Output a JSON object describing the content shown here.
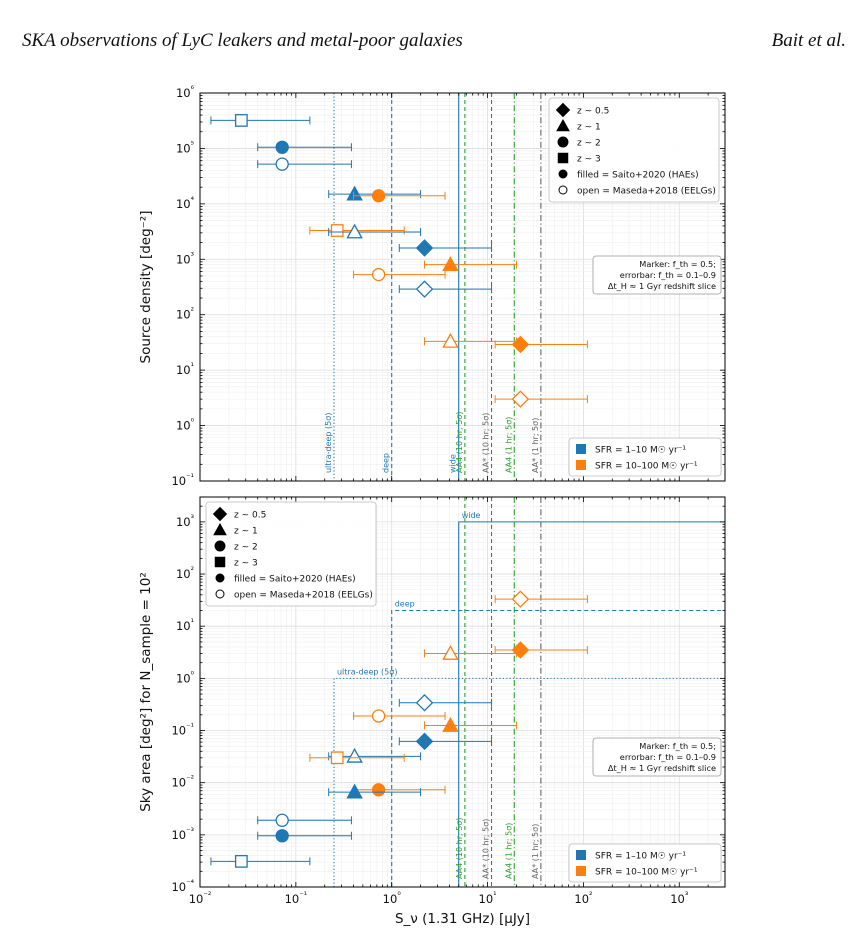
{
  "header": {
    "left": "SKA observations of LyC leakers and metal-poor galaxies",
    "right": "Bait et al."
  },
  "colors": {
    "sfr_low": "#1f77b4",
    "sfr_high": "#ff7f0e",
    "aa4": "#2ca02c",
    "aastar": "#666666"
  },
  "chart_data": [
    {
      "type": "scatter",
      "xscale": "log",
      "yscale": "log",
      "xlim": [
        0.01,
        3000
      ],
      "ylim": [
        0.1,
        1000000
      ],
      "xticks": [
        "10⁻²",
        "10⁻¹",
        "10⁰",
        "10¹",
        "10²",
        "10³"
      ],
      "yticks": [
        "10⁻¹",
        "10⁰",
        "10¹",
        "10²",
        "10³",
        "10⁴",
        "10⁵",
        "10⁶"
      ],
      "ylabel": "Source density [deg⁻²]",
      "grid": true,
      "vlines": [
        {
          "x": 0.25,
          "label": "ultra-deep (5σ)",
          "color": "#1f77b4",
          "style": "dotted"
        },
        {
          "x": 1.0,
          "label": "deep",
          "color": "#1f77b4",
          "style": "dashed"
        },
        {
          "x": 5.0,
          "label": "wide",
          "color": "#1f77b4",
          "style": "solid"
        },
        {
          "x": 5.8,
          "label": "AA4 (10 hr; 5σ)",
          "color": "#2ca02c",
          "style": "dashed"
        },
        {
          "x": 11,
          "label": "AA* (10 hr; 5σ)",
          "color": "#666666",
          "style": "dashed"
        },
        {
          "x": 19,
          "label": "AA4 (1 hr; 5σ)",
          "color": "#2ca02c",
          "style": "dashdot"
        },
        {
          "x": 36,
          "label": "AA* (1 hr; 5σ)",
          "color": "#666666",
          "style": "dashdot"
        }
      ],
      "points": [
        {
          "marker": "square",
          "filled": false,
          "sfr": "low",
          "x": 0.027,
          "xerr": [
            0.013,
            0.14
          ],
          "y": 320000
        },
        {
          "marker": "circle",
          "filled": true,
          "sfr": "low",
          "x": 0.072,
          "xerr": [
            0.04,
            0.38
          ],
          "y": 105000
        },
        {
          "marker": "circle",
          "filled": false,
          "sfr": "low",
          "x": 0.072,
          "xerr": [
            0.04,
            0.38
          ],
          "y": 52000
        },
        {
          "marker": "triangle",
          "filled": true,
          "sfr": "low",
          "x": 0.41,
          "xerr": [
            0.22,
            2.0
          ],
          "y": 15000
        },
        {
          "marker": "circle",
          "filled": true,
          "sfr": "high",
          "x": 0.73,
          "xerr": [
            0.4,
            3.6
          ],
          "y": 14000
        },
        {
          "marker": "square",
          "filled": false,
          "sfr": "high",
          "x": 0.27,
          "xerr": [
            0.14,
            1.35
          ],
          "y": 3300
        },
        {
          "marker": "triangle",
          "filled": false,
          "sfr": "low",
          "x": 0.41,
          "xerr": [
            0.22,
            2.0
          ],
          "y": 3100
        },
        {
          "marker": "diamond",
          "filled": true,
          "sfr": "low",
          "x": 2.2,
          "xerr": [
            1.2,
            11
          ],
          "y": 1600
        },
        {
          "marker": "triangle",
          "filled": true,
          "sfr": "high",
          "x": 4.1,
          "xerr": [
            2.2,
            20
          ],
          "y": 800
        },
        {
          "marker": "circle",
          "filled": false,
          "sfr": "high",
          "x": 0.73,
          "xerr": [
            0.4,
            3.6
          ],
          "y": 530
        },
        {
          "marker": "diamond",
          "filled": false,
          "sfr": "low",
          "x": 2.2,
          "xerr": [
            1.2,
            11
          ],
          "y": 290
        },
        {
          "marker": "triangle",
          "filled": false,
          "sfr": "high",
          "x": 4.1,
          "xerr": [
            2.2,
            20
          ],
          "y": 33
        },
        {
          "marker": "diamond",
          "filled": true,
          "sfr": "high",
          "x": 22,
          "xerr": [
            12,
            110
          ],
          "y": 29
        },
        {
          "marker": "diamond",
          "filled": false,
          "sfr": "high",
          "x": 22,
          "xerr": [
            12,
            110
          ],
          "y": 3.0
        }
      ],
      "legend_markers": {
        "position": "upper right",
        "entries": [
          "z ∼ 0.5",
          "z ∼ 1",
          "z ∼ 2",
          "z ∼ 3",
          "filled = Saito+2020 (HAEs)",
          "open = Maseda+2018 (EELGs)"
        ]
      },
      "note": {
        "position": "right",
        "lines": [
          "Marker: f_th = 0.5;",
          "errorbar: f_th = 0.1–0.9",
          "Δt_H ≈ 1 Gyr redshift slice"
        ]
      },
      "legend_sfr": {
        "position": "lower right",
        "entries": [
          "SFR = 1–10 M☉ yr⁻¹",
          "SFR = 10–100 M☉ yr⁻¹"
        ]
      }
    },
    {
      "type": "scatter",
      "xscale": "log",
      "yscale": "log",
      "xlim": [
        0.01,
        3000
      ],
      "ylim": [
        0.0001,
        3000
      ],
      "xticks": [
        "10⁻²",
        "10⁻¹",
        "10⁰",
        "10¹",
        "10²",
        "10³"
      ],
      "yticks": [
        "10⁻⁴",
        "10⁻³",
        "10⁻²",
        "10⁻¹",
        "10⁰",
        "10¹",
        "10²",
        "10³"
      ],
      "xlabel": "S_ν (1.31 GHz) [μJy]",
      "ylabel": "Sky area [deg²] for N_sample = 10²",
      "grid": true,
      "survey_boxes": [
        {
          "x": 0.25,
          "area": 1,
          "label": "ultra-deep (5σ)",
          "style": "dotted"
        },
        {
          "x": 1.0,
          "area": 20,
          "label": "deep",
          "style": "dashed"
        },
        {
          "x": 5.0,
          "area": 1000,
          "label": "wide",
          "style": "solid"
        }
      ],
      "vlines": [
        {
          "x": 5.8,
          "label": "AA4 (10 hr; 5σ)",
          "color": "#2ca02c",
          "style": "dashed"
        },
        {
          "x": 11,
          "label": "AA* (10 hr; 5σ)",
          "color": "#666666",
          "style": "dashed"
        },
        {
          "x": 19,
          "label": "AA4 (1 hr; 5σ)",
          "color": "#2ca02c",
          "style": "dashdot"
        },
        {
          "x": 36,
          "label": "AA* (1 hr; 5σ)",
          "color": "#666666",
          "style": "dashdot"
        }
      ],
      "points": [
        {
          "marker": "diamond",
          "filled": false,
          "sfr": "high",
          "x": 22,
          "xerr": [
            12,
            110
          ],
          "y": 33
        },
        {
          "marker": "triangle",
          "filled": false,
          "sfr": "high",
          "x": 4.1,
          "xerr": [
            2.2,
            20
          ],
          "y": 3.0
        },
        {
          "marker": "diamond",
          "filled": true,
          "sfr": "high",
          "x": 22,
          "xerr": [
            12,
            110
          ],
          "y": 3.5
        },
        {
          "marker": "diamond",
          "filled": false,
          "sfr": "low",
          "x": 2.2,
          "xerr": [
            1.2,
            11
          ],
          "y": 0.34
        },
        {
          "marker": "circle",
          "filled": false,
          "sfr": "high",
          "x": 0.73,
          "xerr": [
            0.4,
            3.6
          ],
          "y": 0.19
        },
        {
          "marker": "triangle",
          "filled": true,
          "sfr": "high",
          "x": 4.1,
          "xerr": [
            2.2,
            20
          ],
          "y": 0.125
        },
        {
          "marker": "diamond",
          "filled": true,
          "sfr": "low",
          "x": 2.2,
          "xerr": [
            1.2,
            11
          ],
          "y": 0.062
        },
        {
          "marker": "triangle",
          "filled": false,
          "sfr": "low",
          "x": 0.41,
          "xerr": [
            0.22,
            2.0
          ],
          "y": 0.032
        },
        {
          "marker": "square",
          "filled": false,
          "sfr": "high",
          "x": 0.27,
          "xerr": [
            0.14,
            1.35
          ],
          "y": 0.03
        },
        {
          "marker": "circle",
          "filled": true,
          "sfr": "high",
          "x": 0.73,
          "xerr": [
            0.4,
            3.6
          ],
          "y": 0.0073
        },
        {
          "marker": "triangle",
          "filled": true,
          "sfr": "low",
          "x": 0.41,
          "xerr": [
            0.22,
            2.0
          ],
          "y": 0.0066
        },
        {
          "marker": "circle",
          "filled": false,
          "sfr": "low",
          "x": 0.072,
          "xerr": [
            0.04,
            0.38
          ],
          "y": 0.0019
        },
        {
          "marker": "circle",
          "filled": true,
          "sfr": "low",
          "x": 0.072,
          "xerr": [
            0.04,
            0.38
          ],
          "y": 0.00096
        },
        {
          "marker": "square",
          "filled": false,
          "sfr": "low",
          "x": 0.027,
          "xerr": [
            0.013,
            0.14
          ],
          "y": 0.00031
        }
      ],
      "legend_markers": {
        "position": "upper left",
        "entries": [
          "z ∼ 0.5",
          "z ∼ 1",
          "z ∼ 2",
          "z ∼ 3",
          "filled = Saito+2020 (HAEs)",
          "open = Maseda+2018 (EELGs)"
        ]
      },
      "note": {
        "position": "right",
        "lines": [
          "Marker: f_th = 0.5;",
          "errorbar: f_th = 0.1–0.9",
          "Δt_H ≈ 1 Gyr redshift slice"
        ]
      },
      "legend_sfr": {
        "position": "lower right",
        "entries": [
          "SFR = 1–10 M☉ yr⁻¹",
          "SFR = 10–100 M☉ yr⁻¹"
        ]
      }
    }
  ]
}
